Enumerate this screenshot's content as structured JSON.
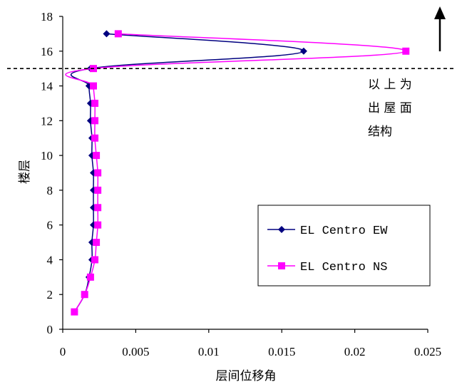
{
  "chart_data": {
    "type": "line",
    "xlabel": "层间位移角",
    "ylabel": "楼层",
    "xlim": [
      0,
      0.025
    ],
    "ylim": [
      0,
      18
    ],
    "x_ticks": [
      "0",
      "0.005",
      "0.01",
      "0.015",
      "0.02",
      "0.025"
    ],
    "y_ticks": [
      "0",
      "2",
      "4",
      "6",
      "8",
      "10",
      "12",
      "14",
      "16",
      "18"
    ],
    "grid": false,
    "legend_position": "bottom-right",
    "series": [
      {
        "name": "EL Centro EW",
        "color": "#000080",
        "marker": "diamond",
        "points": [
          {
            "floor": 1,
            "drift": 0.0008
          },
          {
            "floor": 2,
            "drift": 0.0015
          },
          {
            "floor": 3,
            "drift": 0.0018
          },
          {
            "floor": 4,
            "drift": 0.002
          },
          {
            "floor": 5,
            "drift": 0.002
          },
          {
            "floor": 6,
            "drift": 0.0021
          },
          {
            "floor": 7,
            "drift": 0.0021
          },
          {
            "floor": 8,
            "drift": 0.0021
          },
          {
            "floor": 9,
            "drift": 0.0021
          },
          {
            "floor": 10,
            "drift": 0.002
          },
          {
            "floor": 11,
            "drift": 0.002
          },
          {
            "floor": 12,
            "drift": 0.0019
          },
          {
            "floor": 13,
            "drift": 0.0019
          },
          {
            "floor": 14,
            "drift": 0.0018
          },
          {
            "floor": 15,
            "drift": 0.0019
          },
          {
            "floor": 16,
            "drift": 0.0165
          },
          {
            "floor": 17,
            "drift": 0.003
          }
        ]
      },
      {
        "name": "EL Centro NS",
        "color": "#ff00ff",
        "marker": "square",
        "points": [
          {
            "floor": 1,
            "drift": 0.0008
          },
          {
            "floor": 2,
            "drift": 0.0015
          },
          {
            "floor": 3,
            "drift": 0.0019
          },
          {
            "floor": 4,
            "drift": 0.0022
          },
          {
            "floor": 5,
            "drift": 0.0023
          },
          {
            "floor": 6,
            "drift": 0.0024
          },
          {
            "floor": 7,
            "drift": 0.0024
          },
          {
            "floor": 8,
            "drift": 0.0024
          },
          {
            "floor": 9,
            "drift": 0.0024
          },
          {
            "floor": 10,
            "drift": 0.0023
          },
          {
            "floor": 11,
            "drift": 0.0022
          },
          {
            "floor": 12,
            "drift": 0.0022
          },
          {
            "floor": 13,
            "drift": 0.0022
          },
          {
            "floor": 14,
            "drift": 0.0021
          },
          {
            "floor": 15,
            "drift": 0.0021
          },
          {
            "floor": 16,
            "drift": 0.0235
          },
          {
            "floor": 17,
            "drift": 0.0038
          }
        ]
      }
    ],
    "reference_line": {
      "floor": 15,
      "style": "dashed"
    },
    "annotation": {
      "lines": [
        "以 上 为",
        "出 屋 面",
        "结构"
      ]
    },
    "arrow": {
      "direction": "up"
    }
  }
}
